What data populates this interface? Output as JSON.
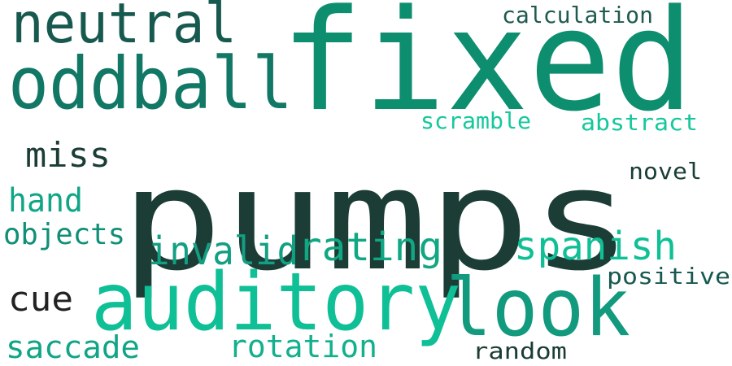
{
  "palette": {
    "dark": "#1b3d36",
    "deep_green": "#17594f",
    "teal": "#0d8e6f",
    "mint": "#0fbf95",
    "charcoal": "#222222"
  },
  "words": [
    {
      "key": "pumps",
      "text": "pumps",
      "color": "#1b3d36"
    },
    {
      "key": "fixed",
      "text": "fixed",
      "color": "#0d8e6f"
    },
    {
      "key": "auditory",
      "text": "auditory",
      "color": "#0fbf95"
    },
    {
      "key": "oddball",
      "text": "oddball",
      "color": "#127866"
    },
    {
      "key": "neutral",
      "text": "neutral",
      "color": "#17594f"
    },
    {
      "key": "look",
      "text": "look",
      "color": "#119a7d"
    },
    {
      "key": "rating",
      "text": "rating",
      "color": "#11a783"
    },
    {
      "key": "spanish",
      "text": "spanish",
      "color": "#0fbf95"
    },
    {
      "key": "invalid",
      "text": "invalid",
      "color": "#129f82"
    },
    {
      "key": "miss",
      "text": "miss",
      "color": "#1b3d36"
    },
    {
      "key": "hand",
      "text": "hand",
      "color": "#10a587"
    },
    {
      "key": "objects",
      "text": "objects",
      "color": "#108f77"
    },
    {
      "key": "cue",
      "text": "cue",
      "color": "#222222"
    },
    {
      "key": "saccade",
      "text": "saccade",
      "color": "#10a586"
    },
    {
      "key": "rotation",
      "text": "rotation",
      "color": "#12b08d"
    },
    {
      "key": "calculation",
      "text": "calculation",
      "color": "#1f5a4f"
    },
    {
      "key": "scramble",
      "text": "scramble",
      "color": "#15c89c"
    },
    {
      "key": "abstract",
      "text": "abstract",
      "color": "#15c89c"
    },
    {
      "key": "novel",
      "text": "novel",
      "color": "#1b3d36"
    },
    {
      "key": "positive",
      "text": "positive",
      "color": "#17594f"
    },
    {
      "key": "random",
      "text": "random",
      "color": "#1b3d36"
    }
  ]
}
